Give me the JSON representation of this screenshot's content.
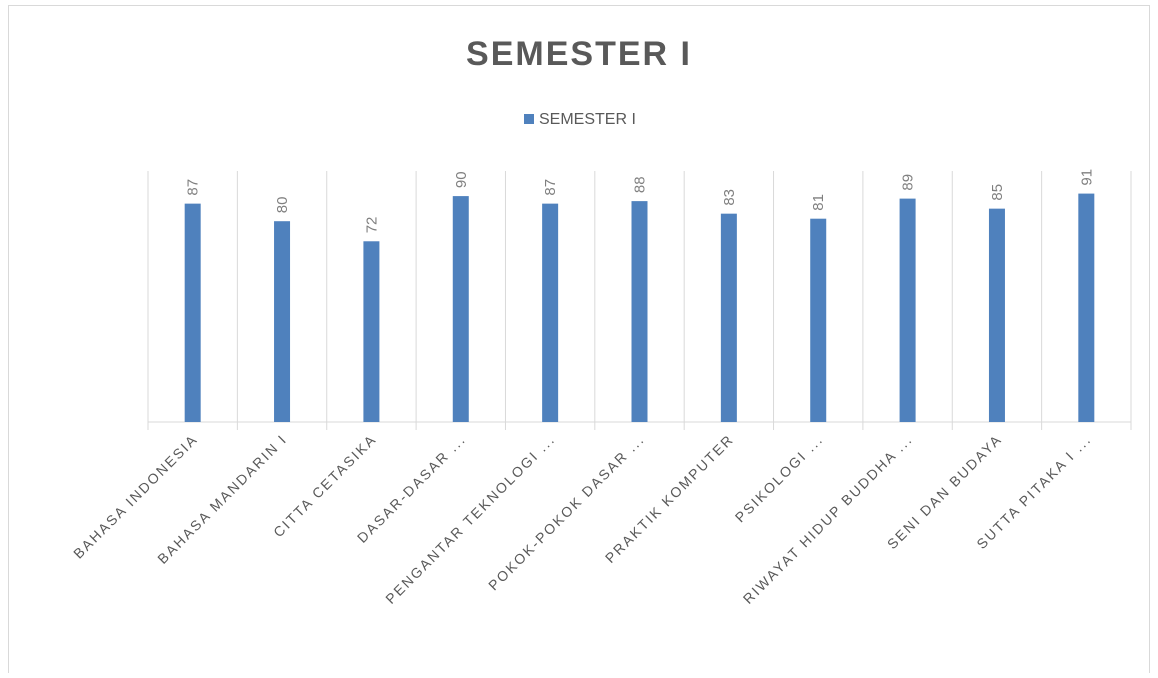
{
  "chart_data": {
    "type": "bar",
    "title": "SEMESTER I",
    "categories": [
      "BAHASA INDONESIA",
      "BAHASA MANDARIN I",
      "CITTA CETASIKA",
      "DASAR-DASAR ...",
      "PENGANTAR TEKNOLOGI ...",
      "POKOK-POKOK DASAR ...",
      "PRAKTIK KOMPUTER",
      "PSIKOLOGI ...",
      "RIWAYAT HIDUP BUDDHA ...",
      "SENI DAN BUDAYA",
      "SUTTA PITAKA I ..."
    ],
    "series": [
      {
        "name": "SEMESTER I",
        "color": "#4f81bd",
        "values": [
          87,
          80,
          72,
          90,
          87,
          88,
          83,
          81,
          89,
          85,
          91
        ]
      }
    ],
    "ylim": [
      0,
      100
    ]
  }
}
